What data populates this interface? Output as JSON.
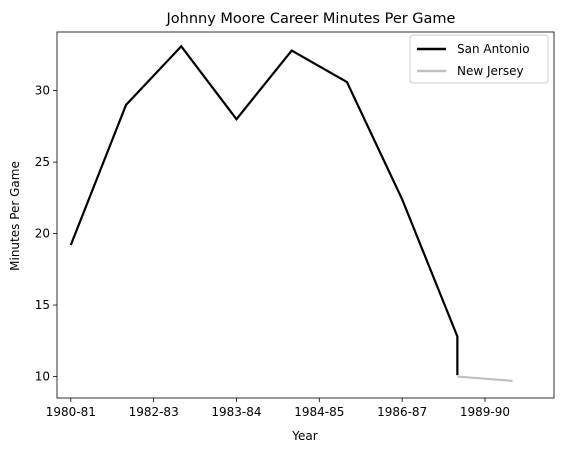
{
  "chart_data": {
    "type": "line",
    "title": "Johnny Moore  Career Minutes Per Game",
    "xlabel": "Year",
    "ylabel": "Minutes Per Game",
    "x_tick_labels": [
      "1980-81",
      "1982-83",
      "1983-84",
      "1984-85",
      "1986-87",
      "1989-90"
    ],
    "y_ticks": [
      10,
      15,
      20,
      25,
      30
    ],
    "xlim": [
      -0.25,
      8.75
    ],
    "ylim": [
      8.5,
      34.1
    ],
    "grid": false,
    "legend_position": "top-right",
    "series": [
      {
        "name": "San Antonio",
        "color": "#000000",
        "x": [
          0,
          1,
          2,
          3,
          4,
          5,
          6,
          7,
          7
        ],
        "y": [
          19.2,
          29.0,
          33.1,
          28.0,
          32.8,
          30.6,
          22.4,
          12.8,
          10.1
        ]
      },
      {
        "name": "New Jersey",
        "color": "#bfbfbf",
        "x": [
          7,
          8
        ],
        "y": [
          10.0,
          9.7
        ]
      }
    ]
  }
}
